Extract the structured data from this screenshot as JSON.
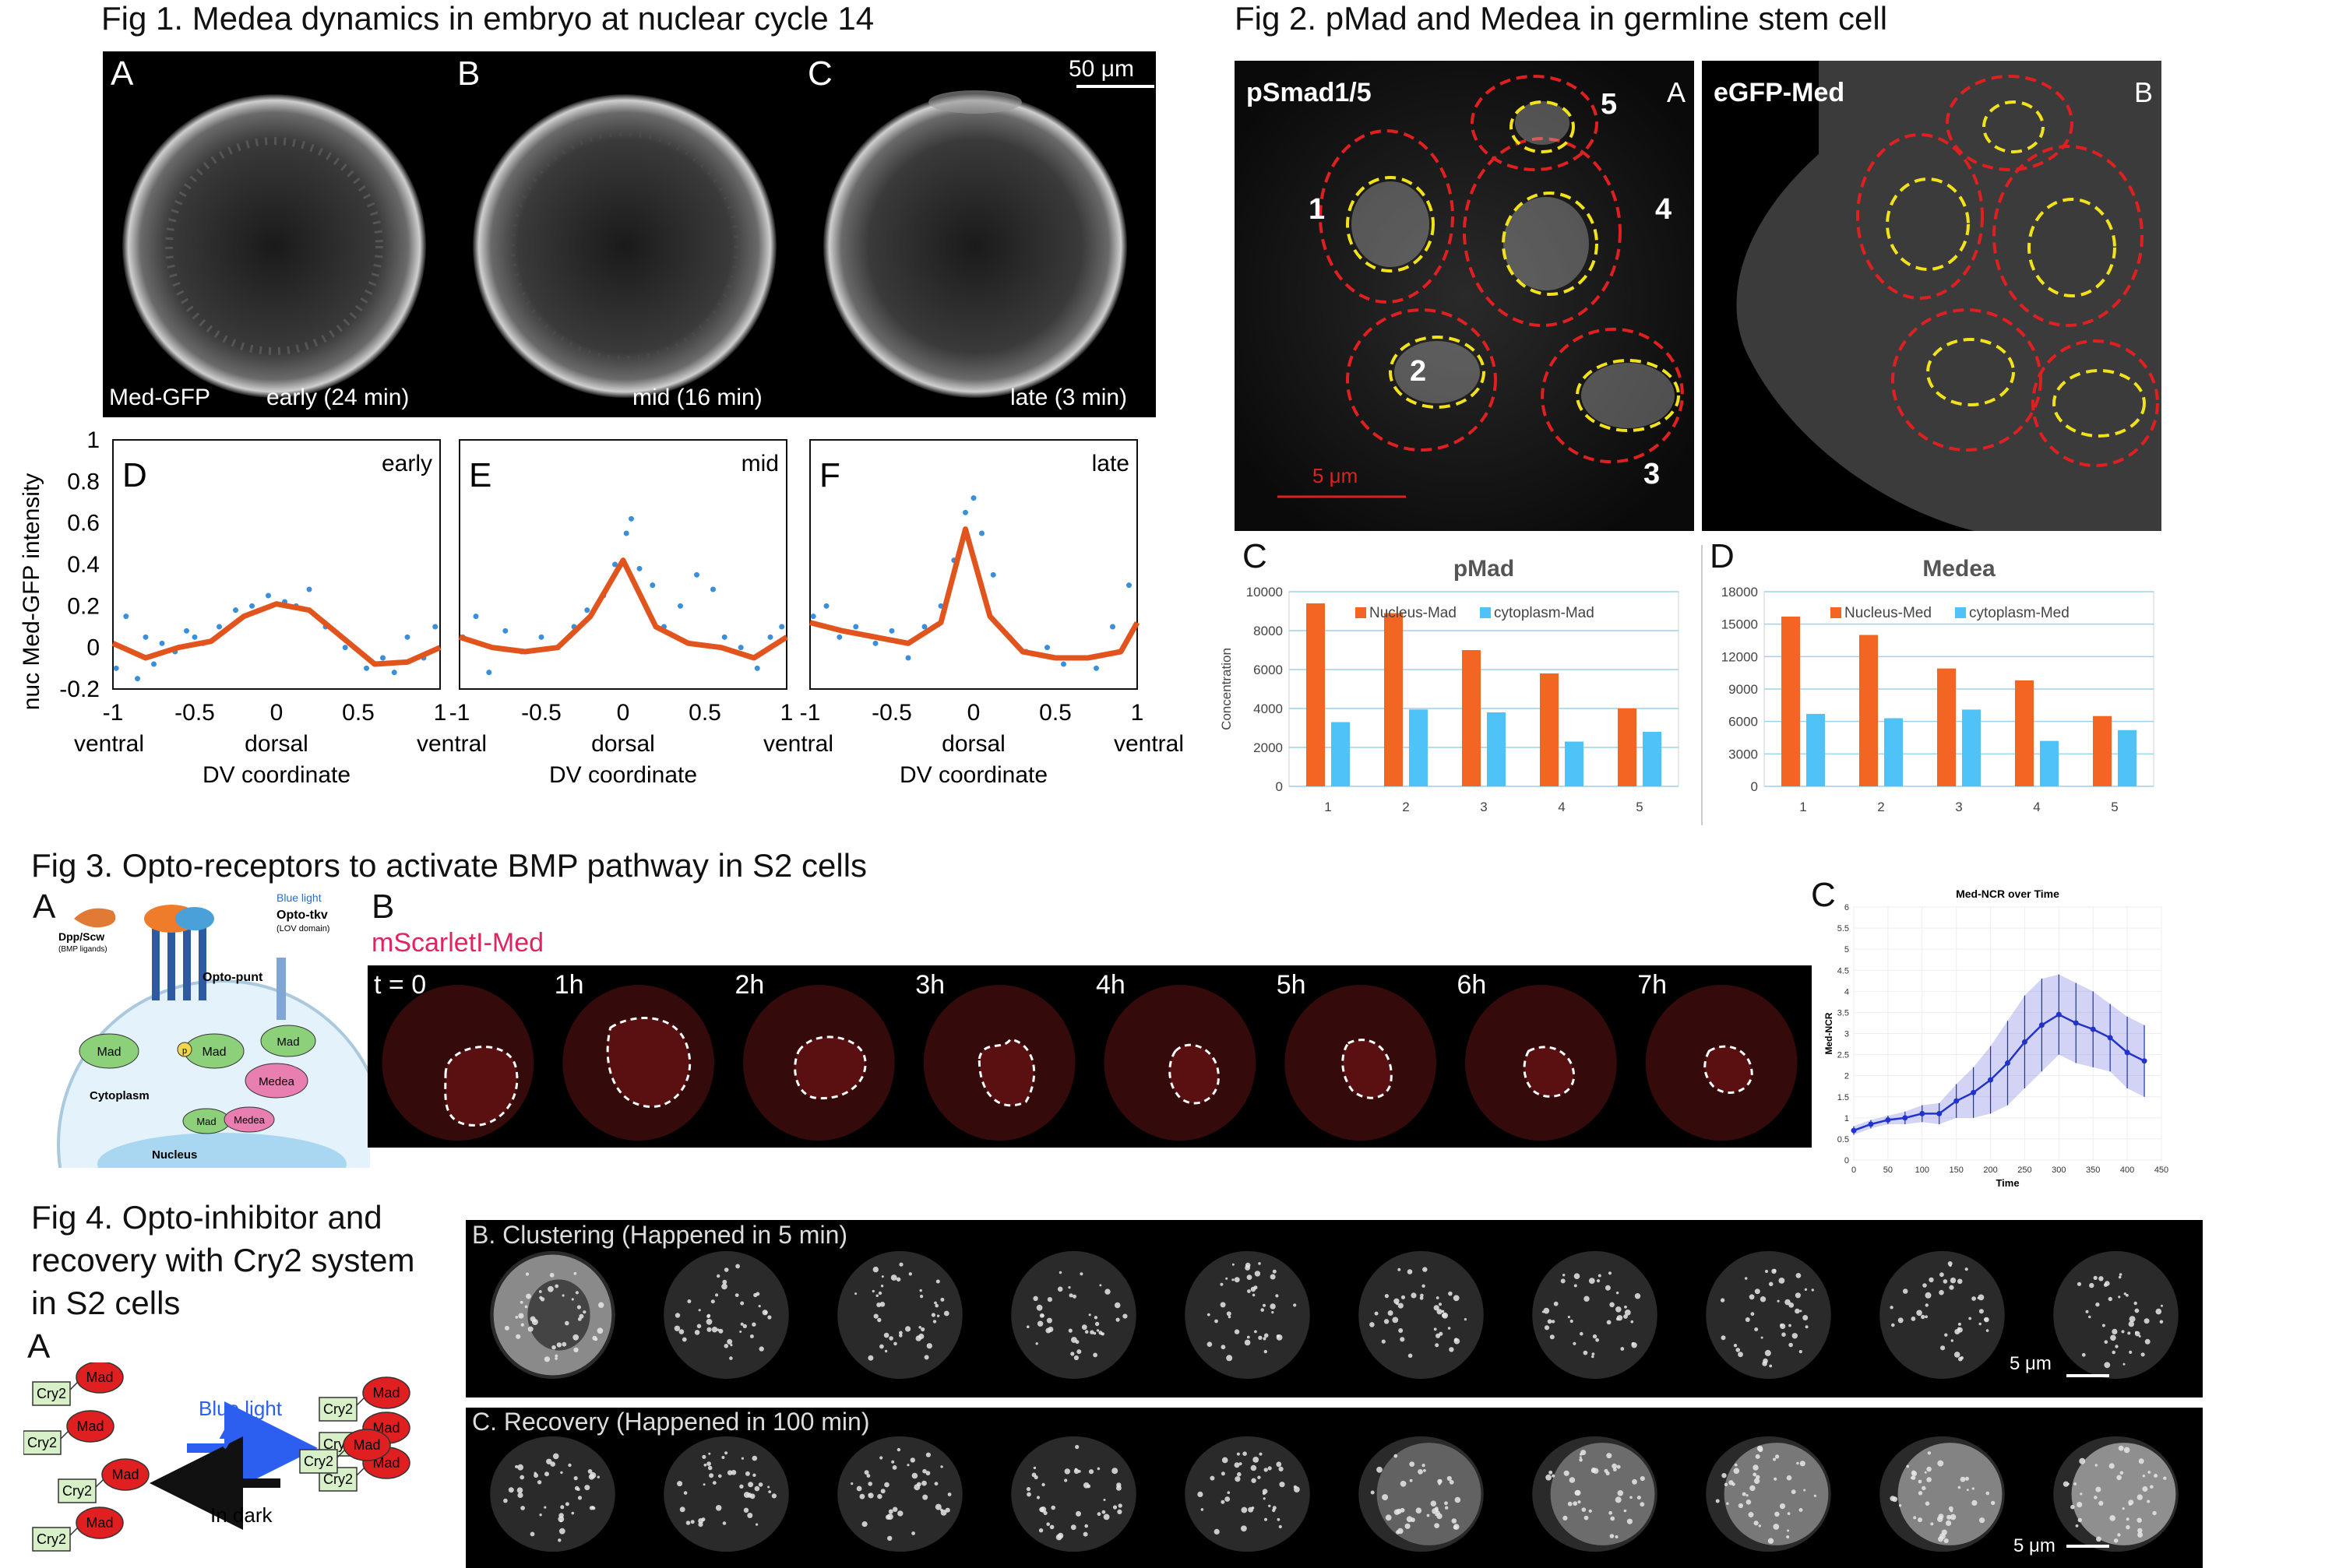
{
  "fig1": {
    "title": "Fig 1. Medea dynamics in embryo at nuclear cycle 14",
    "panels": [
      {
        "letter": "A",
        "caption": "early (24 min)"
      },
      {
        "letter": "B",
        "caption": "mid (16 min)"
      },
      {
        "letter": "C",
        "caption": "late (3 min)"
      }
    ],
    "marker": "Med-GFP",
    "scalebar": "50 μm",
    "ylabel": "nuc Med-GFP intensity",
    "xlabel": "DV coordinate",
    "xaxis_left": "ventral",
    "xaxis_mid": "dorsal",
    "xaxis_right": "ventral",
    "xticks": [
      "-1",
      "-0.5",
      "0",
      "0.5",
      "1"
    ],
    "yticks": [
      "1",
      "0.8",
      "0.6",
      "0.4",
      "0.2",
      "0",
      "-0.2"
    ],
    "plots": [
      {
        "letter": "D",
        "stage": "early"
      },
      {
        "letter": "E",
        "stage": "mid"
      },
      {
        "letter": "F",
        "stage": "late"
      }
    ]
  },
  "fig2": {
    "title": "Fig 2. pMad and Medea in germline stem cell",
    "panelA": {
      "letter": "A",
      "label": "pSmad1/5",
      "cells": [
        "1",
        "2",
        "3",
        "4",
        "5"
      ],
      "scalebar": "5 μm"
    },
    "panelB": {
      "letter": "B",
      "label": "eGFP-Med"
    },
    "chartC": {
      "letter": "C",
      "title": "pMad",
      "legend1": "Nucleus-Mad",
      "legend2": "cytoplasm-Mad",
      "ylabel": "Concentration",
      "yticks": [
        "10000",
        "8000",
        "6000",
        "4000",
        "2000",
        "0"
      ]
    },
    "chartD": {
      "letter": "D",
      "title": "Medea",
      "legend1": "Nucleus-Med",
      "legend2": "cytoplasm-Med",
      "yticks": [
        "18000",
        "15000",
        "12000",
        "9000",
        "6000",
        "3000",
        "0"
      ]
    },
    "xticks": [
      "1",
      "2",
      "3",
      "4",
      "5"
    ]
  },
  "fig3": {
    "title": "Fig 3. Opto-receptors to activate BMP pathway in S2 cells",
    "panelA": {
      "letter": "A",
      "ligand": "Dpp/Scw",
      "ligand_sub": "(BMP ligands)",
      "blue_light": "Blue light",
      "opto_tkv": "Opto-tkv",
      "opto_tkv_sub": "(LOV domain)",
      "opto_punt": "Opto-punt",
      "mad": "Mad",
      "medea": "Medea",
      "p": "p",
      "cytoplasm": "Cytoplasm",
      "nucleus": "Nucleus"
    },
    "panelB": {
      "letter": "B",
      "marker": "mScarletI-Med",
      "times": [
        "t = 0",
        "1h",
        "2h",
        "3h",
        "4h",
        "5h",
        "6h",
        "7h"
      ]
    },
    "panelC": {
      "letter": "C",
      "title": "Med-NCR over Time",
      "xlabel": "Time",
      "ylabel": "Med-NCR",
      "xticks": [
        "0",
        "50",
        "100",
        "150",
        "200",
        "250",
        "300",
        "350",
        "400",
        "450"
      ],
      "yticks": [
        "6",
        "5.5",
        "5",
        "4.5",
        "4",
        "3.5",
        "3",
        "2.5",
        "2",
        "1.5",
        "1",
        "0.5",
        "0"
      ]
    }
  },
  "fig4": {
    "title_line1": "Fig 4. Opto-inhibitor and",
    "title_line2": "recovery with Cry2 system",
    "title_line3": "in S2 cells",
    "panelA": {
      "letter": "A",
      "cry2": "Cry2",
      "mad": "Mad",
      "blue_light": "Blue light",
      "dark": "In dark"
    },
    "panelB": {
      "label": "B. Clustering (Happened in 5 min)",
      "scalebar": "5 μm"
    },
    "panelC": {
      "label": "C. Recovery (Happened in 100 min)",
      "scalebar": "5 μm"
    }
  },
  "chart_data": [
    {
      "type": "scatter",
      "panel": "Fig 1 D",
      "xlabel": "DV coordinate",
      "ylabel": "nuc Med-GFP intensity",
      "xlim": [
        -1,
        1
      ],
      "ylim": [
        -0.2,
        1
      ],
      "fit_x": [
        -1,
        -0.8,
        -0.6,
        -0.4,
        -0.2,
        0,
        0.2,
        0.4,
        0.6,
        0.8,
        1
      ],
      "fit_y": [
        0.02,
        -0.05,
        0.0,
        0.03,
        0.15,
        0.21,
        0.18,
        0.05,
        -0.08,
        -0.07,
        0.0
      ],
      "points_x": [
        -0.98,
        -0.92,
        -0.85,
        -0.8,
        -0.75,
        -0.7,
        -0.62,
        -0.55,
        -0.5,
        -0.45,
        -0.35,
        -0.25,
        -0.15,
        -0.05,
        0.05,
        0.12,
        0.2,
        0.3,
        0.42,
        0.55,
        0.65,
        0.72,
        0.8,
        0.9,
        0.97
      ],
      "points_y": [
        -0.1,
        0.15,
        -0.15,
        0.05,
        -0.08,
        0.02,
        -0.02,
        0.08,
        0.05,
        0.02,
        0.1,
        0.18,
        0.2,
        0.25,
        0.22,
        0.2,
        0.28,
        0.1,
        0.0,
        -0.1,
        -0.05,
        -0.12,
        0.05,
        -0.05,
        0.1
      ]
    },
    {
      "type": "scatter",
      "panel": "Fig 1 E",
      "xlabel": "DV coordinate",
      "xlim": [
        -1,
        1
      ],
      "ylim": [
        -0.2,
        1
      ],
      "fit_x": [
        -1,
        -0.8,
        -0.6,
        -0.4,
        -0.2,
        0,
        0.2,
        0.4,
        0.6,
        0.8,
        1
      ],
      "fit_y": [
        0.05,
        0.0,
        -0.02,
        0.0,
        0.15,
        0.42,
        0.1,
        0.02,
        0.0,
        -0.05,
        0.05
      ],
      "points_x": [
        -0.98,
        -0.9,
        -0.82,
        -0.72,
        -0.62,
        -0.5,
        -0.4,
        -0.3,
        -0.22,
        -0.12,
        -0.05,
        0.02,
        0.05,
        0.1,
        0.18,
        0.25,
        0.35,
        0.45,
        0.55,
        0.62,
        0.72,
        0.82,
        0.9,
        0.97
      ],
      "points_y": [
        0.05,
        0.15,
        -0.12,
        0.08,
        -0.02,
        0.05,
        0.0,
        0.1,
        0.18,
        0.25,
        0.4,
        0.55,
        0.62,
        0.38,
        0.3,
        0.1,
        0.2,
        0.35,
        0.28,
        0.05,
        0.0,
        -0.1,
        0.05,
        0.1
      ]
    },
    {
      "type": "scatter",
      "panel": "Fig 1 F",
      "xlabel": "DV coordinate",
      "xlim": [
        -1,
        1
      ],
      "ylim": [
        -0.2,
        1
      ],
      "fit_x": [
        -1,
        -0.8,
        -0.6,
        -0.4,
        -0.2,
        -0.05,
        0.1,
        0.3,
        0.5,
        0.7,
        0.9,
        1
      ],
      "fit_y": [
        0.12,
        0.08,
        0.05,
        0.02,
        0.12,
        0.57,
        0.15,
        -0.02,
        -0.05,
        -0.05,
        -0.02,
        0.12
      ],
      "points_x": [
        -0.98,
        -0.9,
        -0.82,
        -0.72,
        -0.6,
        -0.5,
        -0.4,
        -0.3,
        -0.2,
        -0.12,
        -0.05,
        0.0,
        0.05,
        0.12,
        0.22,
        0.32,
        0.45,
        0.55,
        0.65,
        0.75,
        0.85,
        0.95
      ],
      "points_y": [
        0.15,
        0.2,
        0.05,
        0.1,
        0.02,
        0.08,
        -0.05,
        0.1,
        0.2,
        0.42,
        0.65,
        0.72,
        0.55,
        0.35,
        0.05,
        -0.02,
        0.0,
        -0.08,
        -0.05,
        -0.1,
        0.1,
        0.3
      ]
    },
    {
      "type": "bar",
      "panel": "Fig 2 C",
      "title": "pMad",
      "ylabel": "Concentration",
      "categories": [
        "1",
        "2",
        "3",
        "4",
        "5"
      ],
      "ylim": [
        0,
        10000
      ],
      "series": [
        {
          "name": "Nucleus-Mad",
          "values": [
            9400,
            8900,
            7000,
            5800,
            4000
          ],
          "color": "#f26522"
        },
        {
          "name": "cytoplasm-Mad",
          "values": [
            3300,
            3950,
            3800,
            2300,
            2800
          ],
          "color": "#4fc3f7"
        }
      ]
    },
    {
      "type": "bar",
      "panel": "Fig 2 D",
      "title": "Medea",
      "categories": [
        "1",
        "2",
        "3",
        "4",
        "5"
      ],
      "ylim": [
        0,
        18000
      ],
      "series": [
        {
          "name": "Nucleus-Med",
          "values": [
            15700,
            14000,
            10900,
            9800,
            6500
          ],
          "color": "#f26522"
        },
        {
          "name": "cytoplasm-Med",
          "values": [
            6700,
            6300,
            7100,
            4200,
            5200
          ],
          "color": "#4fc3f7"
        }
      ]
    },
    {
      "type": "line",
      "panel": "Fig 3 C",
      "title": "Med-NCR over Time",
      "xlabel": "Time",
      "ylabel": "Med-NCR",
      "xlim": [
        0,
        450
      ],
      "ylim": [
        0,
        6
      ],
      "x": [
        0,
        25,
        50,
        75,
        100,
        125,
        150,
        175,
        200,
        225,
        250,
        275,
        300,
        325,
        350,
        375,
        400,
        425
      ],
      "y": [
        0.7,
        0.85,
        0.95,
        1.0,
        1.1,
        1.1,
        1.4,
        1.6,
        1.9,
        2.3,
        2.8,
        3.2,
        3.45,
        3.25,
        3.1,
        2.9,
        2.55,
        2.35
      ],
      "upper": [
        0.8,
        0.95,
        1.05,
        1.15,
        1.3,
        1.35,
        1.8,
        2.2,
        2.7,
        3.3,
        3.9,
        4.3,
        4.4,
        4.2,
        4.0,
        3.7,
        3.4,
        3.2
      ],
      "lower": [
        0.6,
        0.75,
        0.85,
        0.85,
        0.9,
        0.85,
        1.0,
        1.0,
        1.1,
        1.3,
        1.7,
        2.1,
        2.5,
        2.3,
        2.2,
        2.1,
        1.7,
        1.5
      ]
    }
  ]
}
